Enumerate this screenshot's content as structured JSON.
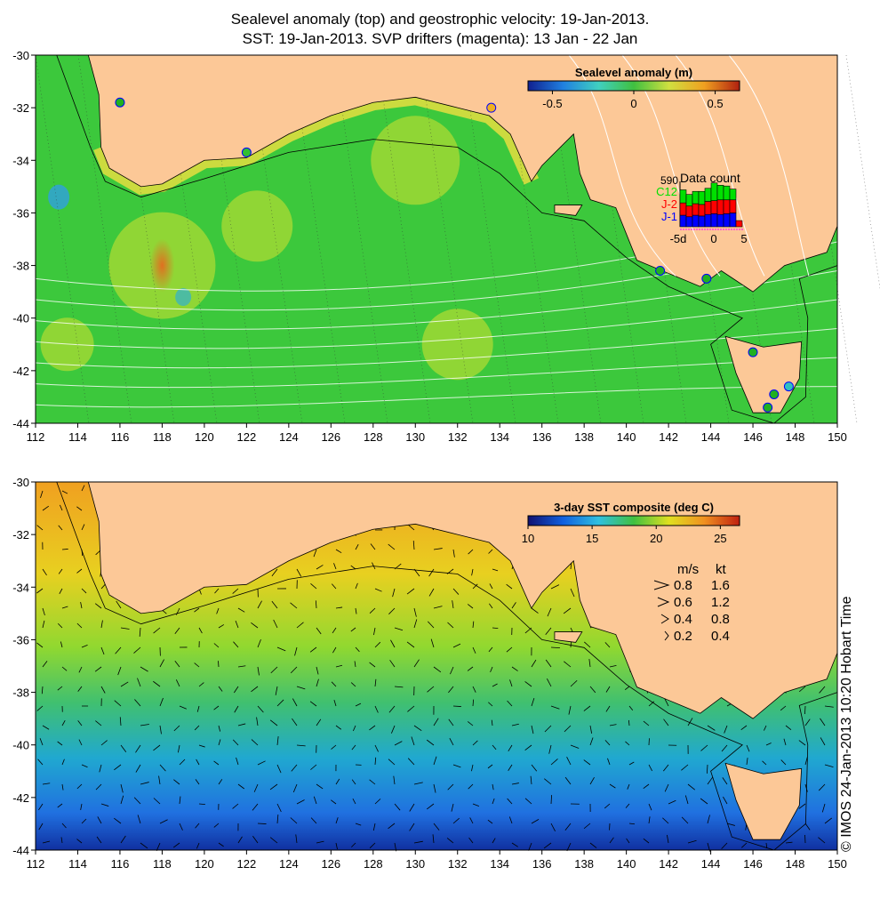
{
  "title_line1": "Sealevel anomaly (top) and geostrophic velocity: 19-Jan-2013.",
  "title_line2": "SST: 19-Jan-2013. SVP drifters (magenta): 13 Jan - 22 Jan",
  "credit": "© IMOS 24-Jan-2013 10:20 Hobart Time",
  "colors": {
    "land": "#fcc897",
    "ocean_sla": "#3cc83c",
    "coast": "#000000",
    "drifter": "#ff00ff"
  },
  "lon_ticks": [
    "112",
    "114",
    "116",
    "118",
    "120",
    "122",
    "124",
    "126",
    "128",
    "130",
    "132",
    "134",
    "136",
    "138",
    "140",
    "142",
    "144",
    "146",
    "148",
    "150"
  ],
  "lat_ticks": [
    "-30",
    "-32",
    "-34",
    "-36",
    "-38",
    "-40",
    "-42",
    "-44"
  ],
  "top_panel": {
    "colorbar_title": "Sealevel anomaly (m)",
    "colorbar_ticks": [
      "-0.5",
      "0",
      "0.5"
    ],
    "colorbar_range": [
      -0.65,
      0.65
    ],
    "data_count": {
      "title": "Data count",
      "max_label": "590",
      "series": [
        "C12",
        "J-2",
        "J-1"
      ],
      "series_colors": [
        "#00e000",
        "#ff0000",
        "#0000ff"
      ],
      "x_labels": [
        "-5d",
        "0",
        "5"
      ],
      "c12": [
        170,
        150,
        160,
        170,
        170,
        230,
        190,
        180,
        140,
        0
      ],
      "j2": [
        160,
        140,
        150,
        150,
        170,
        170,
        190,
        180,
        170,
        80
      ],
      "j1": [
        150,
        130,
        150,
        140,
        160,
        170,
        160,
        170,
        180,
        0
      ],
      "max": 590
    },
    "markers": [
      {
        "lon": 116,
        "lat": -31.8,
        "color": "#20b020"
      },
      {
        "lon": 122,
        "lat": -33.7,
        "color": "#30c030"
      },
      {
        "lon": 133.6,
        "lat": -32,
        "color": "#f0b020"
      },
      {
        "lon": 141.6,
        "lat": -38.2,
        "color": "#20b020"
      },
      {
        "lon": 143.8,
        "lat": -38.5,
        "color": "#20b020"
      },
      {
        "lon": 146,
        "lat": -41.3,
        "color": "#20b020"
      },
      {
        "lon": 147,
        "lat": -42.9,
        "color": "#20b020"
      },
      {
        "lon": 147.7,
        "lat": -42.6,
        "color": "#30c0c0"
      },
      {
        "lon": 146.7,
        "lat": -43.4,
        "color": "#20b020"
      }
    ]
  },
  "bottom_panel": {
    "colorbar_title": "3-day SST composite (deg C)",
    "colorbar_ticks": [
      "10",
      "15",
      "20",
      "25"
    ],
    "colorbar_range": [
      10,
      26.5
    ],
    "velocity_legend": {
      "header_ms": "m/s",
      "header_kt": "kt",
      "rows": [
        {
          "ms": "0.8",
          "kt": "1.6"
        },
        {
          "ms": "0.6",
          "kt": "1.2"
        },
        {
          "ms": "0.4",
          "kt": "0.8"
        },
        {
          "ms": "0.2",
          "kt": "0.4"
        }
      ]
    }
  },
  "map_data": {
    "mainland": [
      [
        114.5,
        -30
      ],
      [
        115,
        -31.5
      ],
      [
        115.1,
        -33.5
      ],
      [
        115.5,
        -34.3
      ],
      [
        117,
        -35
      ],
      [
        118,
        -34.9
      ],
      [
        120,
        -34
      ],
      [
        122,
        -33.9
      ],
      [
        124,
        -33
      ],
      [
        126,
        -32.3
      ],
      [
        128,
        -31.8
      ],
      [
        130,
        -31.6
      ],
      [
        132,
        -32
      ],
      [
        133.5,
        -32.3
      ],
      [
        134.5,
        -33
      ],
      [
        135.5,
        -34.8
      ],
      [
        136,
        -34.2
      ],
      [
        137.5,
        -33
      ],
      [
        137.8,
        -34.5
      ],
      [
        138.3,
        -35.5
      ],
      [
        139.5,
        -35.8
      ],
      [
        140.5,
        -37.8
      ],
      [
        142,
        -38.3
      ],
      [
        143.5,
        -38.8
      ],
      [
        144.5,
        -38.2
      ],
      [
        146,
        -39
      ],
      [
        147.5,
        -38
      ],
      [
        149.5,
        -37.5
      ],
      [
        150,
        -36.5
      ],
      [
        150,
        -30
      ]
    ],
    "tasmania": [
      [
        144.7,
        -40.7
      ],
      [
        146.5,
        -41.1
      ],
      [
        148.3,
        -40.9
      ],
      [
        148.2,
        -42.3
      ],
      [
        147.3,
        -43.6
      ],
      [
        146,
        -43.6
      ],
      [
        145.2,
        -42.1
      ]
    ],
    "kangaroo_island": [
      [
        136.6,
        -35.7
      ],
      [
        137.9,
        -35.7
      ],
      [
        137.6,
        -36.1
      ],
      [
        136.6,
        -36
      ]
    ],
    "shelf_edge": [
      [
        113,
        -30
      ],
      [
        114.6,
        -33.5
      ],
      [
        115.3,
        -34.8
      ],
      [
        117,
        -35.4
      ],
      [
        120,
        -34.7
      ],
      [
        124,
        -33.7
      ],
      [
        128,
        -33.2
      ],
      [
        132,
        -33.5
      ],
      [
        134,
        -34.5
      ],
      [
        136,
        -36
      ],
      [
        138,
        -36.3
      ],
      [
        140,
        -37.7
      ],
      [
        142,
        -38.8
      ],
      [
        144,
        -39.5
      ],
      [
        145.5,
        -40
      ],
      [
        144,
        -41
      ],
      [
        145,
        -43.5
      ],
      [
        147,
        -44
      ],
      [
        148.5,
        -43
      ],
      [
        148.6,
        -40
      ],
      [
        148.2,
        -38.5
      ],
      [
        150,
        -38
      ]
    ]
  }
}
